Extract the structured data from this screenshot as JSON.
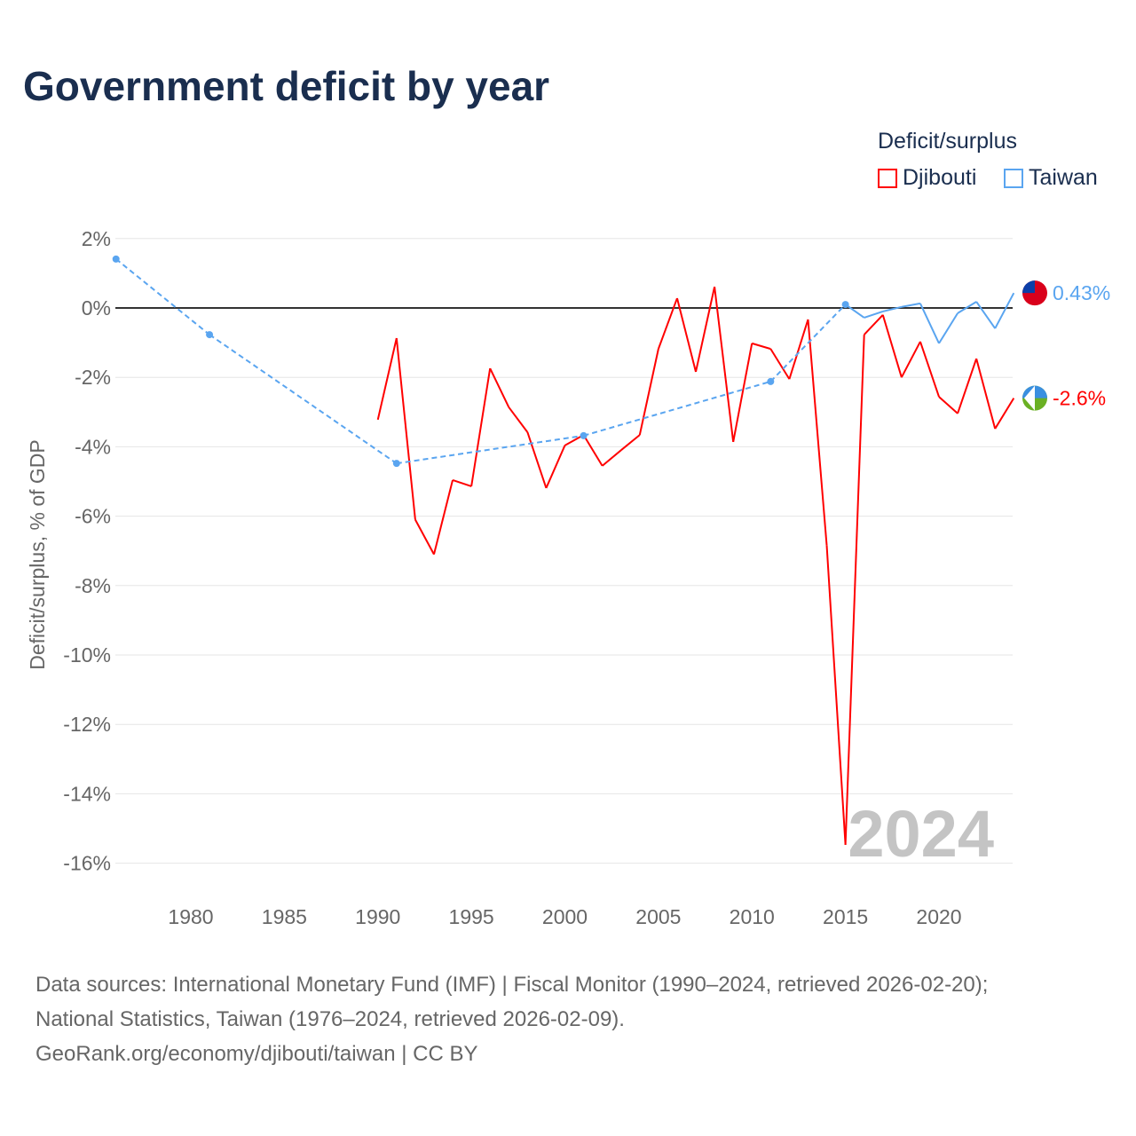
{
  "chart_data": {
    "type": "line",
    "title": "Government deficit by year",
    "ylabel": "Deficit/surplus, % of GDP",
    "xlabel": "",
    "ylim": [
      -16,
      2
    ],
    "xlim": [
      1976,
      2024
    ],
    "yticks": [
      2,
      0,
      -2,
      -4,
      -6,
      -8,
      -10,
      -12,
      -14,
      -16
    ],
    "ytick_labels": [
      "2%",
      "0%",
      "-2%",
      "-4%",
      "-6%",
      "-8%",
      "-10%",
      "-12%",
      "-14%",
      "-16%"
    ],
    "xticks": [
      1980,
      1985,
      1990,
      1995,
      2000,
      2005,
      2010,
      2015,
      2020
    ],
    "xtick_labels": [
      "1980",
      "1985",
      "1990",
      "1995",
      "2000",
      "2005",
      "2010",
      "2015",
      "2020"
    ],
    "legend_title": "Deficit/surplus",
    "legend_position": "top-right",
    "year_label": "2024",
    "series": [
      {
        "name": "Djibouti",
        "color": "#ff0000",
        "end_label": "-2.6%",
        "x": [
          1990,
          1991,
          1992,
          1993,
          1994,
          1995,
          1996,
          1997,
          1998,
          1999,
          2000,
          2001,
          2002,
          2003,
          2004,
          2005,
          2006,
          2007,
          2008,
          2009,
          2010,
          2011,
          2012,
          2013,
          2014,
          2015,
          2016,
          2017,
          2018,
          2019,
          2020,
          2021,
          2022,
          2023,
          2024
        ],
        "y": [
          -3.22,
          -0.87,
          -6.1,
          -7.1,
          -4.96,
          -5.14,
          -1.74,
          -2.86,
          -3.58,
          -5.19,
          -3.96,
          -3.66,
          -4.55,
          -4.1,
          -3.66,
          -1.18,
          0.28,
          -1.84,
          0.61,
          -3.86,
          -1.02,
          -1.18,
          -2.05,
          -0.33,
          -6.85,
          -15.47,
          -0.77,
          -0.2,
          -2.0,
          -0.97,
          -2.56,
          -3.04,
          -1.46,
          -3.48,
          -2.6
        ]
      },
      {
        "name": "Taiwan",
        "color": "#5aa5f0",
        "end_label": "0.43%",
        "x": [
          1976,
          1981,
          1991,
          2001,
          2011,
          2015,
          2016,
          2017,
          2018,
          2019,
          2020,
          2021,
          2022,
          2023,
          2024
        ],
        "y": [
          1.41,
          -0.77,
          -4.48,
          -3.68,
          -2.12,
          0.1,
          -0.28,
          -0.1,
          0.03,
          0.13,
          -1.02,
          -0.15,
          0.18,
          -0.59,
          0.43
        ]
      }
    ]
  },
  "sources": {
    "line1": "Data sources: International Monetary Fund (IMF) | Fiscal Monitor (1990–2024, retrieved 2026-02-20);",
    "line2": "National Statistics, Taiwan (1976–2024, retrieved 2026-02-09).",
    "line3": "GeoRank.org/economy/djibouti/taiwan | CC BY"
  }
}
